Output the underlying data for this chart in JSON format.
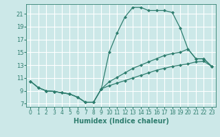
{
  "xlabel": "Humidex (Indice chaleur)",
  "bg_color": "#cce8e8",
  "grid_color": "#ffffff",
  "line_color": "#2e7d6e",
  "x_ticks": [
    0,
    1,
    2,
    3,
    4,
    5,
    6,
    7,
    8,
    9,
    10,
    11,
    12,
    13,
    14,
    15,
    16,
    17,
    18,
    19,
    20,
    21,
    22,
    23
  ],
  "y_ticks": [
    7,
    9,
    11,
    13,
    15,
    17,
    19,
    21
  ],
  "ylim": [
    6.5,
    22.5
  ],
  "xlim": [
    -0.5,
    23.5
  ],
  "series1": [
    10.5,
    9.5,
    9.0,
    8.9,
    8.7,
    8.5,
    8.0,
    7.2,
    7.2,
    9.3,
    15.0,
    18.0,
    20.5,
    22.0,
    22.0,
    21.5,
    21.5,
    21.5,
    21.2,
    18.8,
    15.5,
    14.0,
    14.0,
    12.8
  ],
  "series2": [
    10.5,
    9.5,
    9.0,
    8.9,
    8.7,
    8.5,
    8.0,
    7.2,
    7.2,
    9.3,
    10.4,
    11.1,
    11.8,
    12.5,
    13.0,
    13.5,
    14.0,
    14.5,
    14.8,
    15.0,
    15.5,
    14.0,
    14.0,
    12.8
  ],
  "series3": [
    10.5,
    9.5,
    9.0,
    8.9,
    8.7,
    8.5,
    8.0,
    7.2,
    7.2,
    9.3,
    9.8,
    10.2,
    10.6,
    11.0,
    11.4,
    11.8,
    12.2,
    12.5,
    12.8,
    13.0,
    13.2,
    13.5,
    13.6,
    12.8
  ],
  "markersize": 2.5,
  "linewidth": 0.9,
  "xlabel_fontsize": 7,
  "tick_fontsize": 5.5
}
